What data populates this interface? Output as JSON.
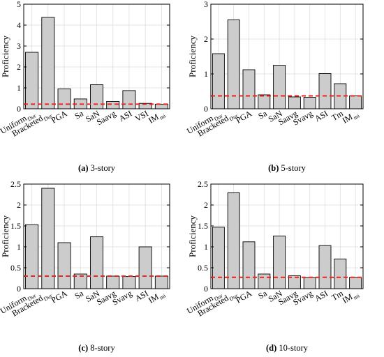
{
  "figure": {
    "captions": [
      {
        "label": "(a)",
        "text": "3-story"
      },
      {
        "label": "(b)",
        "text": "5-story"
      },
      {
        "label": "(c)",
        "text": "8-story"
      },
      {
        "label": "(d)",
        "text": "10-story"
      }
    ]
  },
  "colors": {
    "bar_fill": "#cccccc",
    "bar_stroke": "#000000",
    "threshold_line": "#e8261f",
    "axis": "#000000",
    "grid": "#dddddd"
  },
  "chart_data": [
    {
      "type": "bar",
      "title": "",
      "ylabel": "Proficiency",
      "xlabel": "",
      "ylim": [
        0,
        5
      ],
      "yticks": [
        0,
        1,
        2,
        3,
        4,
        5
      ],
      "grid": true,
      "categories": [
        {
          "main": "Uniform",
          "sub": "Dur"
        },
        {
          "main": "Bracketed",
          "sub": "Dur"
        },
        {
          "main": "PGA",
          "sub": ""
        },
        {
          "main": "Sa",
          "sub": ""
        },
        {
          "main": "SaN",
          "sub": ""
        },
        {
          "main": "Saavg",
          "sub": ""
        },
        {
          "main": "ASI",
          "sub": ""
        },
        {
          "main": "VSI",
          "sub": ""
        },
        {
          "main": "IM",
          "sub": "mi"
        }
      ],
      "values": [
        2.7,
        4.37,
        0.95,
        0.47,
        1.15,
        0.35,
        0.87,
        0.26,
        0.22
      ],
      "reference_line": 0.22
    },
    {
      "type": "bar",
      "title": "",
      "ylabel": "Proficiency",
      "xlabel": "",
      "ylim": [
        0,
        3
      ],
      "yticks": [
        0,
        1,
        2,
        3
      ],
      "grid": true,
      "categories": [
        {
          "main": "Uniform",
          "sub": "Dur"
        },
        {
          "main": "Bracketed",
          "sub": "Dur"
        },
        {
          "main": "PGA",
          "sub": ""
        },
        {
          "main": "Sa",
          "sub": ""
        },
        {
          "main": "SaN",
          "sub": ""
        },
        {
          "main": "Saavg",
          "sub": ""
        },
        {
          "main": "Svavg",
          "sub": ""
        },
        {
          "main": "ASI",
          "sub": ""
        },
        {
          "main": "Tm",
          "sub": ""
        },
        {
          "main": "IM",
          "sub": "mi"
        }
      ],
      "values": [
        1.58,
        2.55,
        1.12,
        0.4,
        1.25,
        0.34,
        0.33,
        1.01,
        0.72,
        0.37
      ],
      "reference_line": 0.37
    },
    {
      "type": "bar",
      "title": "",
      "ylabel": "Proficiency",
      "xlabel": "",
      "ylim": [
        0,
        2.5
      ],
      "yticks": [
        0,
        0.5,
        1,
        1.5,
        2,
        2.5
      ],
      "grid": true,
      "categories": [
        {
          "main": "Uniform",
          "sub": "Dur"
        },
        {
          "main": "Bracketed",
          "sub": "Dur"
        },
        {
          "main": "PGA",
          "sub": ""
        },
        {
          "main": "Sa",
          "sub": ""
        },
        {
          "main": "SaN",
          "sub": ""
        },
        {
          "main": "Saavg",
          "sub": ""
        },
        {
          "main": "Svavg",
          "sub": ""
        },
        {
          "main": "ASI",
          "sub": ""
        },
        {
          "main": "IM",
          "sub": "mi"
        }
      ],
      "values": [
        1.53,
        2.4,
        1.1,
        0.35,
        1.24,
        0.3,
        0.29,
        1.0,
        0.3
      ],
      "reference_line": 0.3
    },
    {
      "type": "bar",
      "title": "",
      "ylabel": "Proficiency",
      "xlabel": "",
      "ylim": [
        0,
        2.5
      ],
      "yticks": [
        0,
        0.5,
        1,
        1.5,
        2,
        2.5
      ],
      "grid": true,
      "categories": [
        {
          "main": "Uniform",
          "sub": "Dur"
        },
        {
          "main": "Bracketed",
          "sub": "Dur"
        },
        {
          "main": "PGA",
          "sub": ""
        },
        {
          "main": "Sa",
          "sub": ""
        },
        {
          "main": "SaN",
          "sub": ""
        },
        {
          "main": "Saavg",
          "sub": ""
        },
        {
          "main": "Svavg",
          "sub": ""
        },
        {
          "main": "ASI",
          "sub": ""
        },
        {
          "main": "Tm",
          "sub": ""
        },
        {
          "main": "IM",
          "sub": "mi"
        }
      ],
      "values": [
        1.47,
        2.29,
        1.12,
        0.35,
        1.26,
        0.31,
        0.27,
        1.03,
        0.71,
        0.27
      ],
      "reference_line": 0.27
    }
  ]
}
